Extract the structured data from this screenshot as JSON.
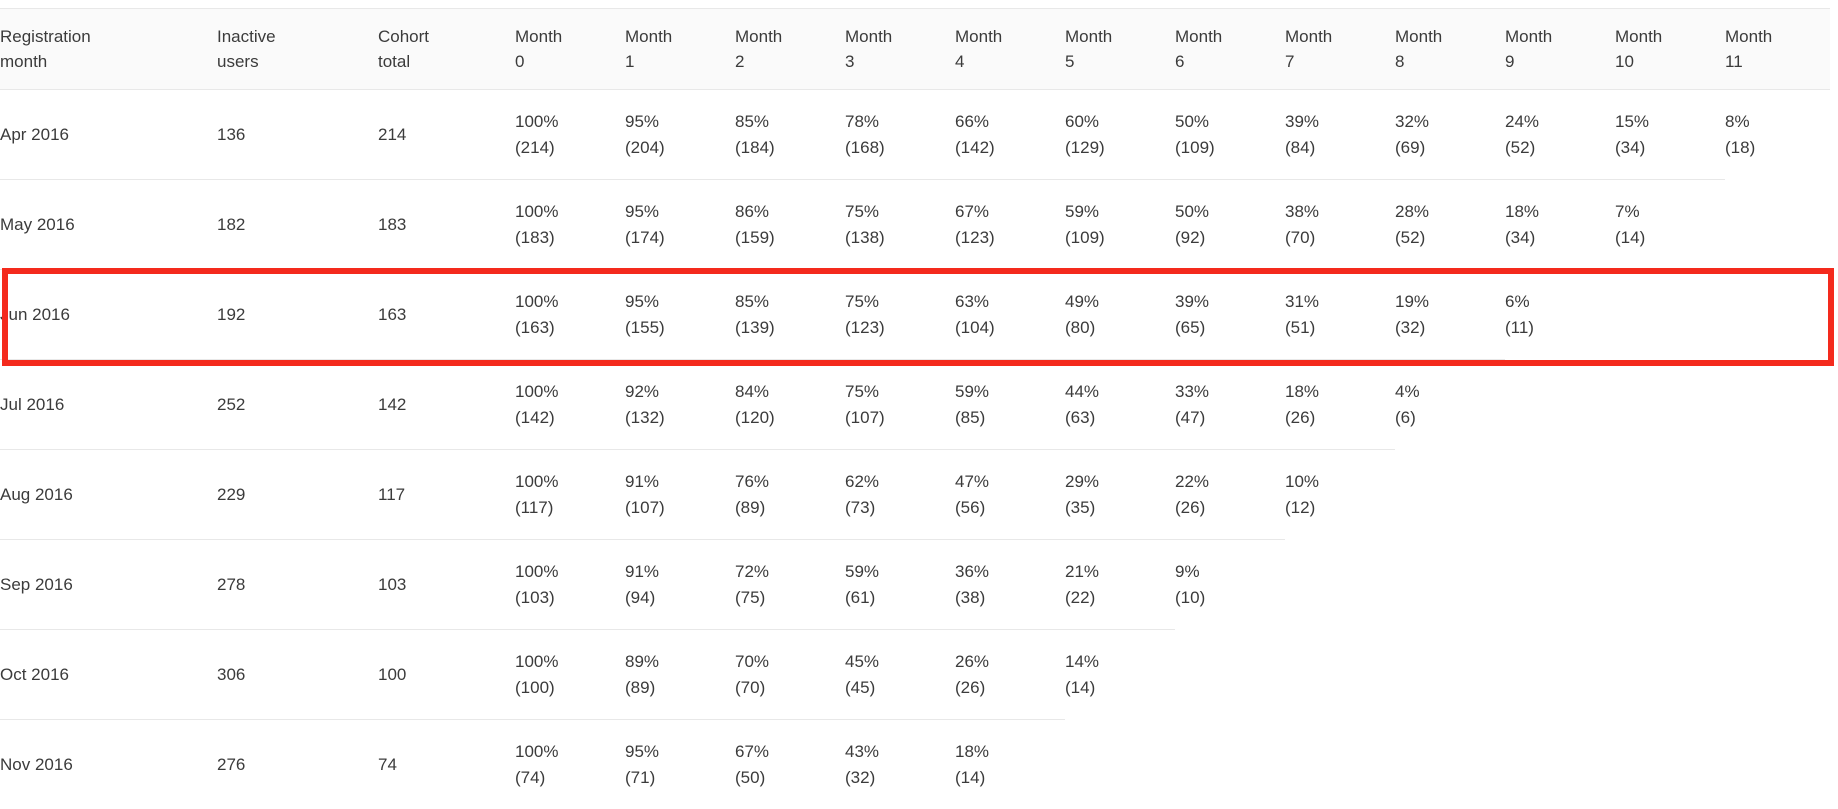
{
  "chart_data": {
    "type": "table",
    "columns": [
      "Registration month",
      "Inactive users",
      "Cohort total",
      "Month 0",
      "Month 1",
      "Month 2",
      "Month 3",
      "Month 4",
      "Month 5",
      "Month 6",
      "Month 7",
      "Month 8",
      "Month 9",
      "Month 10",
      "Month 11"
    ],
    "rows": [
      {
        "registration_month": "Apr 2016",
        "inactive_users": 136,
        "cohort_total": 214,
        "retention": [
          {
            "percent": 100,
            "count": 214
          },
          {
            "percent": 95,
            "count": 204
          },
          {
            "percent": 85,
            "count": 184
          },
          {
            "percent": 78,
            "count": 168
          },
          {
            "percent": 66,
            "count": 142
          },
          {
            "percent": 60,
            "count": 129
          },
          {
            "percent": 50,
            "count": 109
          },
          {
            "percent": 39,
            "count": 84
          },
          {
            "percent": 32,
            "count": 69
          },
          {
            "percent": 24,
            "count": 52
          },
          {
            "percent": 15,
            "count": 34
          },
          {
            "percent": 8,
            "count": 18
          }
        ]
      },
      {
        "registration_month": "May 2016",
        "inactive_users": 182,
        "cohort_total": 183,
        "retention": [
          {
            "percent": 100,
            "count": 183
          },
          {
            "percent": 95,
            "count": 174
          },
          {
            "percent": 86,
            "count": 159
          },
          {
            "percent": 75,
            "count": 138
          },
          {
            "percent": 67,
            "count": 123
          },
          {
            "percent": 59,
            "count": 109
          },
          {
            "percent": 50,
            "count": 92
          },
          {
            "percent": 38,
            "count": 70
          },
          {
            "percent": 28,
            "count": 52
          },
          {
            "percent": 18,
            "count": 34
          },
          {
            "percent": 7,
            "count": 14
          }
        ]
      },
      {
        "registration_month": "Jun 2016",
        "inactive_users": 192,
        "cohort_total": 163,
        "retention": [
          {
            "percent": 100,
            "count": 163
          },
          {
            "percent": 95,
            "count": 155
          },
          {
            "percent": 85,
            "count": 139
          },
          {
            "percent": 75,
            "count": 123
          },
          {
            "percent": 63,
            "count": 104
          },
          {
            "percent": 49,
            "count": 80
          },
          {
            "percent": 39,
            "count": 65
          },
          {
            "percent": 31,
            "count": 51
          },
          {
            "percent": 19,
            "count": 32
          },
          {
            "percent": 6,
            "count": 11
          }
        ]
      },
      {
        "registration_month": "Jul 2016",
        "inactive_users": 252,
        "cohort_total": 142,
        "retention": [
          {
            "percent": 100,
            "count": 142
          },
          {
            "percent": 92,
            "count": 132
          },
          {
            "percent": 84,
            "count": 120
          },
          {
            "percent": 75,
            "count": 107
          },
          {
            "percent": 59,
            "count": 85
          },
          {
            "percent": 44,
            "count": 63
          },
          {
            "percent": 33,
            "count": 47
          },
          {
            "percent": 18,
            "count": 26
          },
          {
            "percent": 4,
            "count": 6
          }
        ]
      },
      {
        "registration_month": "Aug 2016",
        "inactive_users": 229,
        "cohort_total": 117,
        "retention": [
          {
            "percent": 100,
            "count": 117
          },
          {
            "percent": 91,
            "count": 107
          },
          {
            "percent": 76,
            "count": 89
          },
          {
            "percent": 62,
            "count": 73
          },
          {
            "percent": 47,
            "count": 56
          },
          {
            "percent": 29,
            "count": 35
          },
          {
            "percent": 22,
            "count": 26
          },
          {
            "percent": 10,
            "count": 12
          }
        ]
      },
      {
        "registration_month": "Sep 2016",
        "inactive_users": 278,
        "cohort_total": 103,
        "retention": [
          {
            "percent": 100,
            "count": 103
          },
          {
            "percent": 91,
            "count": 94
          },
          {
            "percent": 72,
            "count": 75
          },
          {
            "percent": 59,
            "count": 61
          },
          {
            "percent": 36,
            "count": 38
          },
          {
            "percent": 21,
            "count": 22
          },
          {
            "percent": 9,
            "count": 10
          }
        ]
      },
      {
        "registration_month": "Oct 2016",
        "inactive_users": 306,
        "cohort_total": 100,
        "retention": [
          {
            "percent": 100,
            "count": 100
          },
          {
            "percent": 89,
            "count": 89
          },
          {
            "percent": 70,
            "count": 70
          },
          {
            "percent": 45,
            "count": 45
          },
          {
            "percent": 26,
            "count": 26
          },
          {
            "percent": 14,
            "count": 14
          }
        ]
      },
      {
        "registration_month": "Nov 2016",
        "inactive_users": 276,
        "cohort_total": 74,
        "retention": [
          {
            "percent": 100,
            "count": 74
          },
          {
            "percent": 95,
            "count": 71
          },
          {
            "percent": 67,
            "count": 50
          },
          {
            "percent": 43,
            "count": 32
          },
          {
            "percent": 18,
            "count": 14
          }
        ]
      }
    ],
    "annotation": {
      "type": "highlight-box",
      "highlighted_row": "Jun 2016",
      "color": "#f42a1d"
    },
    "layout": {
      "grid": "horizontal row separators only",
      "header_background": "#fafafa",
      "border_color": "#e8e8e8",
      "text_color": "#3b3b3b"
    }
  }
}
